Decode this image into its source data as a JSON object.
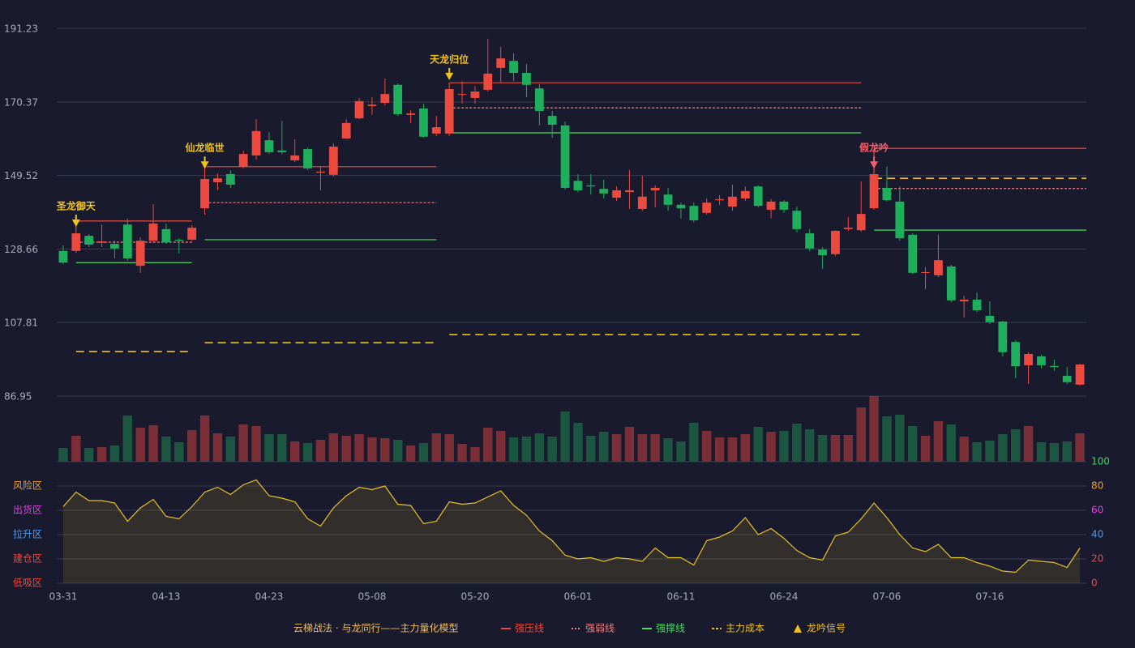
{
  "chart_data": {
    "type": "candlestick",
    "categories": [
      "03-31",
      null,
      null,
      null,
      null,
      null,
      null,
      null,
      "04-13",
      null,
      null,
      null,
      null,
      null,
      null,
      null,
      "04-23",
      null,
      null,
      null,
      null,
      null,
      null,
      null,
      "05-08",
      null,
      null,
      null,
      null,
      null,
      null,
      null,
      "05-20",
      null,
      null,
      null,
      null,
      null,
      null,
      null,
      "06-01",
      null,
      null,
      null,
      null,
      null,
      null,
      null,
      "06-11",
      null,
      null,
      null,
      null,
      null,
      null,
      null,
      "06-24",
      null,
      null,
      null,
      null,
      null,
      null,
      null,
      "07-06",
      null,
      null,
      null,
      null,
      null,
      null,
      null,
      "07-16",
      null,
      null,
      null,
      null,
      null,
      null,
      null
    ],
    "open": [
      128.1,
      128.1,
      132.4,
      130.4,
      130.1,
      135.6,
      123.9,
      131.0,
      134.3,
      131.3,
      131.3,
      140.2,
      147.6,
      149.9,
      152.0,
      155.2,
      159.5,
      156.6,
      153.8,
      157.0,
      150.3,
      149.7,
      160.0,
      165.7,
      169.2,
      170.1,
      175.2,
      166.7,
      168.5,
      161.4,
      161.4,
      172.4,
      171.5,
      173.8,
      180.0,
      182.0,
      178.6,
      174.2,
      166.4,
      163.7,
      148.0,
      146.7,
      145.7,
      143.2,
      144.8,
      140.0,
      145.3,
      144.1,
      141.2,
      140.9,
      138.9,
      142.5,
      140.7,
      143.0,
      146.4,
      139.8,
      142.1,
      139.5,
      133.1,
      128.5,
      127.2,
      134.3,
      134.0,
      140.2,
      146.0,
      142.1,
      132.7,
      121.9,
      121.2,
      123.7,
      113.8,
      114.3,
      109.7,
      108.1,
      102.3,
      95.7,
      98.2,
      95.5,
      92.7,
      90.2
    ],
    "high": [
      129.7,
      133.8,
      132.9,
      135.6,
      131.0,
      137.3,
      132.0,
      141.4,
      135.9,
      131.7,
      135.4,
      150.3,
      150.1,
      151.0,
      156.5,
      165.5,
      161.8,
      165.0,
      159.8,
      157.5,
      152.2,
      158.6,
      165.5,
      171.5,
      171.7,
      177.0,
      175.6,
      168.0,
      169.9,
      166.4,
      175.4,
      176.3,
      174.9,
      188.3,
      186.0,
      184.1,
      181.1,
      175.4,
      167.8,
      164.8,
      149.9,
      149.9,
      148.3,
      146.4,
      151.0,
      149.4,
      146.7,
      146.0,
      141.8,
      141.8,
      143.0,
      143.9,
      146.9,
      146.4,
      146.7,
      142.8,
      142.5,
      140.7,
      134.3,
      129.2,
      134.0,
      137.7,
      147.8,
      150.3,
      152.0,
      146.4,
      133.1,
      123.5,
      132.7,
      124.2,
      115.4,
      116.3,
      113.8,
      108.3,
      102.8,
      99.4,
      98.7,
      97.3,
      95.2,
      96.1
    ],
    "low": [
      124.4,
      127.6,
      129.2,
      129.2,
      126.0,
      125.3,
      121.9,
      130.4,
      130.1,
      127.4,
      131.0,
      138.4,
      145.3,
      146.0,
      151.5,
      154.0,
      155.6,
      155.6,
      153.3,
      151.0,
      145.3,
      149.2,
      159.8,
      165.5,
      166.7,
      169.4,
      166.4,
      164.4,
      160.2,
      160.7,
      160.7,
      169.9,
      169.9,
      173.3,
      175.6,
      176.3,
      171.7,
      163.7,
      160.2,
      145.5,
      144.8,
      144.1,
      143.0,
      142.3,
      140.0,
      139.5,
      140.5,
      139.5,
      137.3,
      136.3,
      138.4,
      141.2,
      139.5,
      142.3,
      140.5,
      137.3,
      138.9,
      133.4,
      128.1,
      123.0,
      126.7,
      133.8,
      133.6,
      139.8,
      142.1,
      131.0,
      121.6,
      117.3,
      120.7,
      113.6,
      109.2,
      110.8,
      107.4,
      98.2,
      92.0,
      90.4,
      94.8,
      94.1,
      90.4,
      89.9
    ],
    "close": [
      124.8,
      133.1,
      129.9,
      130.8,
      128.8,
      126.0,
      131.0,
      135.9,
      130.6,
      131.0,
      134.7,
      148.5,
      148.7,
      146.9,
      155.6,
      162.1,
      156.1,
      156.1,
      155.2,
      151.5,
      150.6,
      157.7,
      164.4,
      170.6,
      169.6,
      172.6,
      166.9,
      167.1,
      160.5,
      163.2,
      174.0,
      172.6,
      173.3,
      178.4,
      182.7,
      178.6,
      175.2,
      167.8,
      163.9,
      146.0,
      145.3,
      146.4,
      144.4,
      145.3,
      145.3,
      143.5,
      146.0,
      141.2,
      140.2,
      136.8,
      141.8,
      142.8,
      143.5,
      145.1,
      140.9,
      142.1,
      139.8,
      134.3,
      128.8,
      126.9,
      133.8,
      134.7,
      138.6,
      149.9,
      142.5,
      131.7,
      121.9,
      122.1,
      125.5,
      114.1,
      114.3,
      111.3,
      107.9,
      99.4,
      95.4,
      98.9,
      95.7,
      95.2,
      90.9,
      95.9
    ],
    "up_color": "#ec4a3f",
    "down_color": "#1fae5c",
    "ylim": [
      86.95,
      191.23
    ],
    "yticks": [
      191.23,
      170.37,
      149.52,
      128.66,
      107.81,
      86.95
    ],
    "grid": true,
    "volume": [
      17,
      32,
      17,
      18,
      20,
      57,
      42,
      45,
      31,
      24,
      39,
      57,
      35,
      31,
      46,
      44,
      34,
      34,
      25,
      23,
      27,
      35,
      32,
      34,
      30,
      29,
      27,
      20,
      23,
      35,
      34,
      22,
      18,
      42,
      38,
      30,
      31,
      35,
      31,
      62,
      48,
      32,
      37,
      34,
      43,
      34,
      34,
      29,
      25,
      48,
      38,
      30,
      30,
      34,
      43,
      37,
      38,
      47,
      40,
      33,
      33,
      33,
      67,
      81,
      56,
      58,
      44,
      32,
      50,
      46,
      31,
      24,
      26,
      34,
      40,
      44,
      24,
      23,
      25,
      35
    ],
    "volume_up_color": "#7a2f37",
    "volume_down_color": "#1c5640",
    "osc": [
      63,
      75,
      68,
      68,
      66,
      51,
      62,
      69,
      55,
      53,
      63,
      75,
      79,
      73,
      81,
      85,
      72,
      70,
      67,
      53,
      47,
      62,
      72,
      79,
      77,
      80,
      65,
      64,
      49,
      51,
      67,
      65,
      66,
      71,
      76,
      64,
      56,
      43,
      35,
      23,
      20,
      21,
      18,
      21,
      20,
      18,
      29,
      21,
      21,
      15,
      35,
      38,
      43,
      54,
      40,
      45,
      37,
      27,
      21,
      19,
      39,
      42,
      53,
      66,
      54,
      40,
      29,
      26,
      32,
      21,
      21,
      17,
      14,
      10,
      9,
      19,
      18,
      17,
      13,
      29
    ],
    "osc_color": "#e6c229",
    "osc_lim": [
      0,
      100
    ],
    "osc_ticks": [
      0,
      20,
      40,
      60,
      80,
      100
    ],
    "osc_tick_colors": [
      "#ec4a3f",
      "#ec4a3f",
      "#4a9cf0",
      "#e040e0",
      "#f0a020",
      "#30e060"
    ],
    "zones": [
      {
        "value": 80,
        "label": "风险区",
        "color": "#f0a020"
      },
      {
        "value": 60,
        "label": "出货区",
        "color": "#e040e0"
      },
      {
        "value": 40,
        "label": "拉升区",
        "color": "#4a9cf0"
      },
      {
        "value": 20,
        "label": "建仓区",
        "color": "#ec4a3f"
      },
      {
        "value": 0,
        "label": "低吸区",
        "color": "#ec4a3f"
      }
    ],
    "signals": [
      {
        "label": "圣龙御天",
        "color": "#f0c419",
        "start": 1,
        "end": 10,
        "pressure": 136.6,
        "weak": 130.6,
        "support": 124.8,
        "cost": 99.6
      },
      {
        "label": "仙龙临世",
        "color": "#f0c419",
        "start": 11,
        "end": 29,
        "pressure": 152.0,
        "weak": 141.8,
        "support": 131.3,
        "cost": 102.1
      },
      {
        "label": "天龙归位",
        "color": "#f0c419",
        "start": 30,
        "end": 62,
        "pressure": 175.8,
        "weak": 168.7,
        "support": 161.6,
        "cost": 104.4
      },
      {
        "label": "假龙吟",
        "color": "#f0606a",
        "start": 63,
        "end": 79,
        "pressure": 157.2,
        "weak": 145.8,
        "support": 134.0,
        "cost": 148.7
      }
    ],
    "legend_title": "云梯战法 · 与龙同行——主力量化模型",
    "legend_title_color": "#f0c060",
    "legend": [
      {
        "name": "强压线",
        "color": "#ec4a3f"
      },
      {
        "name": "强弱线",
        "color": "#f08080"
      },
      {
        "name": "强撑线",
        "color": "#4cd964"
      },
      {
        "name": "主力成本",
        "color": "#f0c419"
      },
      {
        "name": "龙吟信号",
        "color": "#f0c419"
      }
    ]
  }
}
